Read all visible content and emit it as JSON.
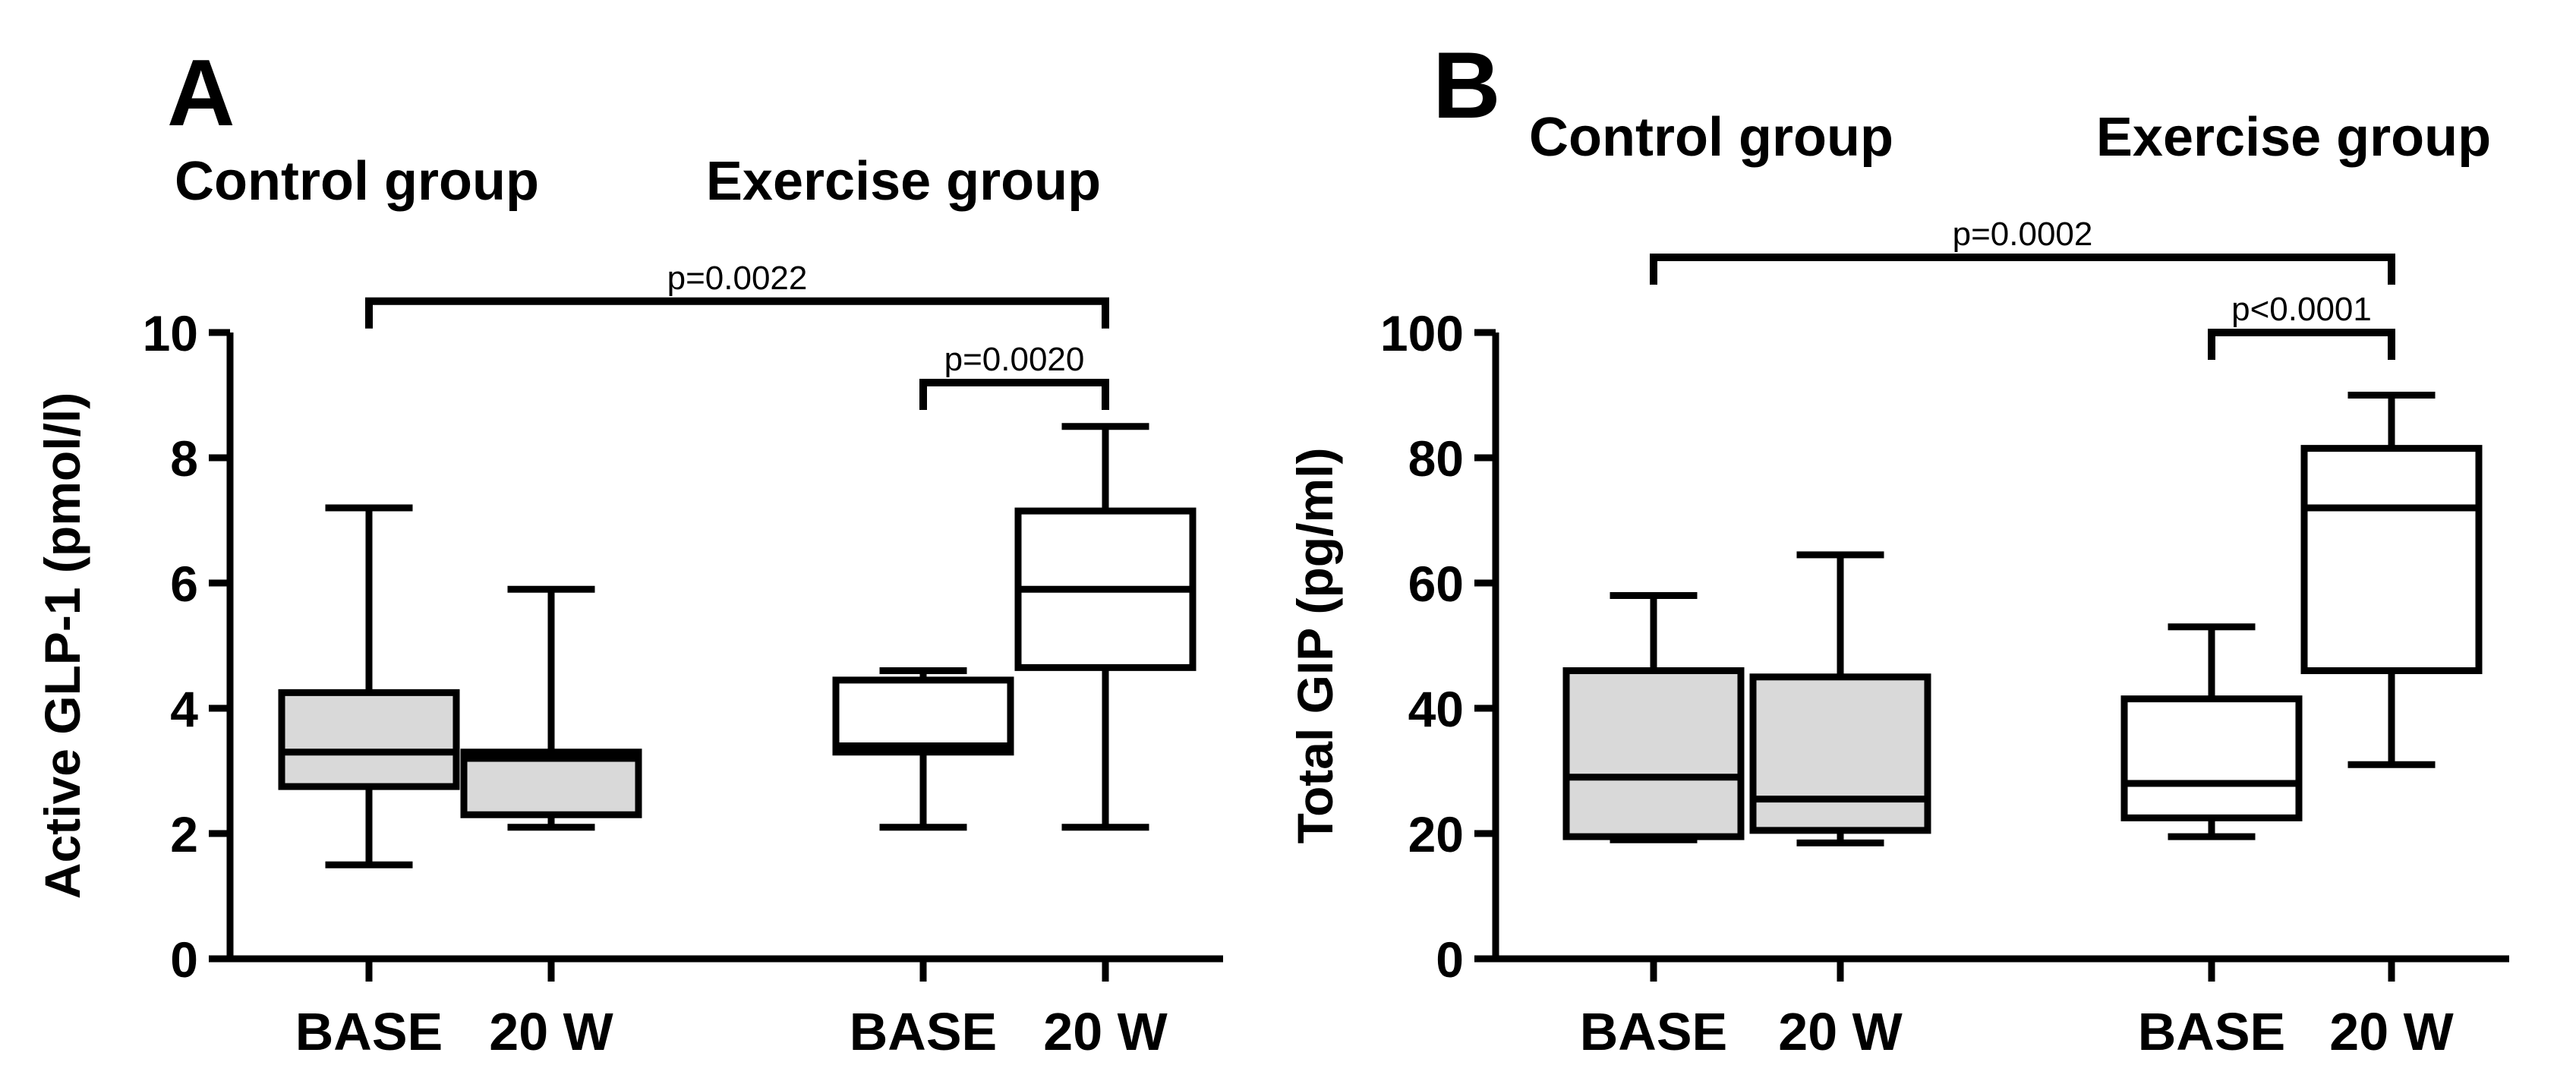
{
  "chart_data": [
    {
      "type": "box",
      "panel": "A",
      "ylabel": "Active GLP-1 (pmol/l)",
      "ylim": [
        0,
        10
      ],
      "yticks": [
        0,
        2,
        4,
        6,
        8,
        10
      ],
      "groups": [
        {
          "title": "Control group",
          "categories": [
            "BASE",
            "20 W"
          ]
        },
        {
          "title": "Exercise group",
          "categories": [
            "BASE",
            "20 W"
          ]
        }
      ],
      "boxes": [
        {
          "group": "Control group",
          "label": "BASE",
          "min": 1.5,
          "q1": 2.75,
          "median": 3.3,
          "q3": 4.25,
          "max": 7.2,
          "fill": "#d9d9d9"
        },
        {
          "group": "Control group",
          "label": "20 W",
          "min": 2.1,
          "q1": 2.3,
          "median": 3.2,
          "q3": 3.3,
          "max": 5.9,
          "fill": "#d9d9d9"
        },
        {
          "group": "Exercise group",
          "label": "BASE",
          "min": 2.1,
          "q1": 3.3,
          "median": 3.4,
          "q3": 4.45,
          "max": 4.6,
          "fill": "#ffffff"
        },
        {
          "group": "Exercise group",
          "label": "20 W",
          "min": 2.1,
          "q1": 4.65,
          "median": 5.9,
          "q3": 7.15,
          "max": 8.5,
          "fill": "#ffffff"
        }
      ],
      "comparisons": [
        {
          "from": 0,
          "to": 3,
          "text": "p=0.0022",
          "level": 10.5
        },
        {
          "from": 2,
          "to": 3,
          "text": "p=0.0020",
          "level": 9.2
        }
      ]
    },
    {
      "type": "box",
      "panel": "B",
      "ylabel": "Total GIP (pg/ml)",
      "ylim": [
        0,
        100
      ],
      "yticks": [
        0,
        20,
        40,
        60,
        80,
        100
      ],
      "groups": [
        {
          "title": "Control group",
          "categories": [
            "BASE",
            "20 W"
          ]
        },
        {
          "title": "Exercise group",
          "categories": [
            "BASE",
            "20 W"
          ]
        }
      ],
      "boxes": [
        {
          "group": "Control group",
          "label": "BASE",
          "min": 19,
          "q1": 19.5,
          "median": 29,
          "q3": 46,
          "max": 58,
          "fill": "#d9d9d9"
        },
        {
          "group": "Control group",
          "label": "20 W",
          "min": 18.5,
          "q1": 20.5,
          "median": 25.5,
          "q3": 45,
          "max": 64.5,
          "fill": "#d9d9d9"
        },
        {
          "group": "Exercise group",
          "label": "BASE",
          "min": 19.5,
          "q1": 22.5,
          "median": 28,
          "q3": 41.5,
          "max": 53,
          "fill": "#ffffff"
        },
        {
          "group": "Exercise group",
          "label": "20 W",
          "min": 31,
          "q1": 46,
          "median": 72,
          "q3": 81.5,
          "max": 90,
          "fill": "#ffffff"
        }
      ],
      "comparisons": [
        {
          "from": 0,
          "to": 3,
          "text": "p=0.0002",
          "level": 112
        },
        {
          "from": 2,
          "to": 3,
          "text": "p<0.0001",
          "level": 100
        }
      ]
    }
  ]
}
